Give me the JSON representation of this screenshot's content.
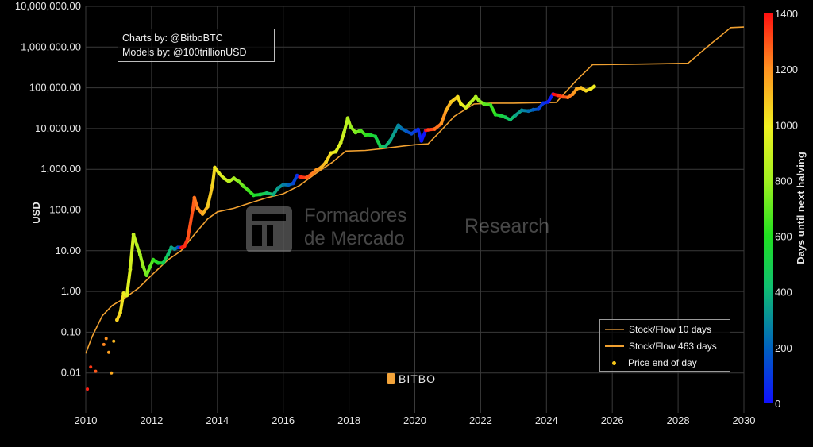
{
  "credits": {
    "line1": "Charts by: @BitboBTC",
    "line2": "Models by: @100trillionUSD"
  },
  "watermark": {
    "line1": "Formadores",
    "line2": "de Mercado",
    "right": "Research"
  },
  "brand": "BITBO",
  "legend": {
    "items": [
      {
        "label": "Stock/Flow 10 days",
        "color": "#9b6a2a",
        "kind": "line"
      },
      {
        "label": "Stock/Flow 463 days",
        "color": "#f0a030",
        "kind": "line"
      },
      {
        "label": "Price end of day",
        "color": "#f5c518",
        "kind": "dot"
      }
    ]
  },
  "chart_data": {
    "type": "scatter",
    "title": "",
    "xlabel": "",
    "ylabel": "USD",
    "y_scale": "log",
    "x_ticks": [
      "2010",
      "2012",
      "2014",
      "2016",
      "2018",
      "2020",
      "2022",
      "2024",
      "2026",
      "2028",
      "2030"
    ],
    "xlim": [
      2010,
      2030
    ],
    "y_ticks": [
      "0.01",
      "0.10",
      "1.00",
      "10.00",
      "100.00",
      "1,000.00",
      "10,000.00",
      "100,000.00",
      "1,000,000.00",
      "10,000,000.00"
    ],
    "ylim": [
      0.001,
      10000000
    ],
    "grid": true,
    "legend_position": "bottom-right",
    "colorbar": {
      "label": "Days until next halving",
      "ticks": [
        "0",
        "200",
        "400",
        "600",
        "800",
        "1000",
        "1200",
        "1400"
      ],
      "range": [
        0,
        1400
      ]
    },
    "series": [
      {
        "name": "Stock/Flow 463 days",
        "color": "#f0a030",
        "points": [
          [
            2010.0,
            0.03
          ],
          [
            2010.2,
            0.08
          ],
          [
            2010.5,
            0.25
          ],
          [
            2010.8,
            0.45
          ],
          [
            2011.2,
            0.7
          ],
          [
            2011.6,
            1.2
          ],
          [
            2012.0,
            2.5
          ],
          [
            2012.5,
            6
          ],
          [
            2012.9,
            10
          ],
          [
            2013.3,
            25
          ],
          [
            2013.7,
            60
          ],
          [
            2014.0,
            90
          ],
          [
            2014.5,
            110
          ],
          [
            2015.0,
            150
          ],
          [
            2015.5,
            200
          ],
          [
            2016.0,
            250
          ],
          [
            2016.5,
            400
          ],
          [
            2017.0,
            800
          ],
          [
            2017.5,
            1500
          ],
          [
            2017.9,
            2800
          ],
          [
            2018.5,
            2900
          ],
          [
            2019.0,
            3200
          ],
          [
            2019.5,
            3600
          ],
          [
            2020.0,
            4000
          ],
          [
            2020.4,
            4200
          ],
          [
            2020.8,
            9000
          ],
          [
            2021.2,
            20000
          ],
          [
            2021.8,
            40000
          ],
          [
            2022.3,
            42000
          ],
          [
            2023.0,
            42000
          ],
          [
            2023.6,
            43000
          ],
          [
            2024.3,
            44000
          ],
          [
            2024.9,
            150000
          ],
          [
            2025.4,
            370000
          ],
          [
            2026.5,
            380000
          ],
          [
            2027.5,
            390000
          ],
          [
            2028.3,
            400000
          ],
          [
            2029.0,
            1200000
          ],
          [
            2029.6,
            3000000
          ],
          [
            2030.0,
            3100000
          ]
        ]
      },
      {
        "name": "Price end of day",
        "color_by": "days_until_next_halving",
        "points": [
          [
            2010.05,
            0.004,
            1380
          ],
          [
            2010.15,
            0.014,
            1340
          ],
          [
            2010.3,
            0.011,
            1290
          ],
          [
            2010.55,
            0.05,
            1220
          ],
          [
            2010.62,
            0.07,
            1200
          ],
          [
            2010.7,
            0.032,
            1170
          ],
          [
            2010.78,
            0.01,
            1150
          ],
          [
            2010.85,
            0.06,
            1120
          ],
          [
            2010.95,
            0.2,
            1090
          ],
          [
            2011.05,
            0.3,
            1060
          ],
          [
            2011.15,
            0.9,
            1020
          ],
          [
            2011.25,
            0.8,
            990
          ],
          [
            2011.35,
            3.5,
            950
          ],
          [
            2011.45,
            25,
            920
          ],
          [
            2011.55,
            14,
            880
          ],
          [
            2011.65,
            8,
            840
          ],
          [
            2011.75,
            4,
            800
          ],
          [
            2011.85,
            2.5,
            760
          ],
          [
            2011.95,
            4,
            720
          ],
          [
            2012.05,
            6,
            690
          ],
          [
            2012.2,
            5,
            620
          ],
          [
            2012.35,
            5,
            560
          ],
          [
            2012.5,
            8,
            480
          ],
          [
            2012.6,
            12,
            420
          ],
          [
            2012.7,
            11,
            350
          ],
          [
            2012.8,
            12,
            280
          ],
          [
            2012.85,
            12,
            160
          ],
          [
            2012.9,
            12,
            40
          ],
          [
            2013.0,
            13,
            1390
          ],
          [
            2013.1,
            20,
            1350
          ],
          [
            2013.25,
            100,
            1300
          ],
          [
            2013.3,
            200,
            1280
          ],
          [
            2013.4,
            110,
            1240
          ],
          [
            2013.55,
            80,
            1190
          ],
          [
            2013.7,
            120,
            1130
          ],
          [
            2013.85,
            400,
            1080
          ],
          [
            2013.92,
            1100,
            1050
          ],
          [
            2014.05,
            800,
            1010
          ],
          [
            2014.2,
            600,
            960
          ],
          [
            2014.35,
            500,
            900
          ],
          [
            2014.5,
            600,
            850
          ],
          [
            2014.65,
            500,
            800
          ],
          [
            2014.8,
            380,
            740
          ],
          [
            2014.95,
            300,
            690
          ],
          [
            2015.1,
            230,
            640
          ],
          [
            2015.3,
            240,
            570
          ],
          [
            2015.5,
            260,
            500
          ],
          [
            2015.7,
            240,
            430
          ],
          [
            2015.85,
            350,
            370
          ],
          [
            2016.0,
            420,
            320
          ],
          [
            2016.15,
            410,
            260
          ],
          [
            2016.3,
            450,
            200
          ],
          [
            2016.42,
            700,
            130
          ],
          [
            2016.5,
            650,
            60
          ],
          [
            2016.55,
            640,
            1400
          ],
          [
            2016.7,
            620,
            1340
          ],
          [
            2016.85,
            750,
            1290
          ],
          [
            2017.0,
            950,
            1230
          ],
          [
            2017.15,
            1100,
            1180
          ],
          [
            2017.3,
            1500,
            1120
          ],
          [
            2017.45,
            2500,
            1060
          ],
          [
            2017.6,
            2700,
            1010
          ],
          [
            2017.75,
            4500,
            950
          ],
          [
            2017.85,
            8000,
            910
          ],
          [
            2017.96,
            18000,
            870
          ],
          [
            2018.05,
            11000,
            840
          ],
          [
            2018.2,
            8000,
            780
          ],
          [
            2018.35,
            9000,
            730
          ],
          [
            2018.5,
            7000,
            670
          ],
          [
            2018.65,
            7000,
            620
          ],
          [
            2018.8,
            6400,
            560
          ],
          [
            2018.95,
            3700,
            510
          ],
          [
            2019.1,
            3600,
            460
          ],
          [
            2019.25,
            5000,
            400
          ],
          [
            2019.4,
            8500,
            350
          ],
          [
            2019.5,
            12000,
            310
          ],
          [
            2019.6,
            10000,
            270
          ],
          [
            2019.75,
            8500,
            220
          ],
          [
            2019.9,
            7500,
            160
          ],
          [
            2020.0,
            8500,
            130
          ],
          [
            2020.1,
            9500,
            90
          ],
          [
            2020.2,
            5000,
            60
          ],
          [
            2020.33,
            9000,
            10
          ],
          [
            2020.4,
            9300,
            1400
          ],
          [
            2020.6,
            9700,
            1320
          ],
          [
            2020.8,
            13000,
            1250
          ],
          [
            2020.95,
            28000,
            1190
          ],
          [
            2021.1,
            45000,
            1130
          ],
          [
            2021.3,
            60000,
            1070
          ],
          [
            2021.4,
            40000,
            1030
          ],
          [
            2021.55,
            33000,
            980
          ],
          [
            2021.7,
            44000,
            920
          ],
          [
            2021.85,
            60000,
            860
          ],
          [
            2021.95,
            48000,
            820
          ],
          [
            2022.1,
            40000,
            770
          ],
          [
            2022.3,
            38000,
            690
          ],
          [
            2022.45,
            22000,
            640
          ],
          [
            2022.6,
            21000,
            580
          ],
          [
            2022.75,
            19000,
            520
          ],
          [
            2022.9,
            16500,
            470
          ],
          [
            2023.05,
            21000,
            420
          ],
          [
            2023.25,
            28000,
            350
          ],
          [
            2023.45,
            27000,
            280
          ],
          [
            2023.6,
            29000,
            230
          ],
          [
            2023.75,
            30000,
            180
          ],
          [
            2023.9,
            42000,
            120
          ],
          [
            2024.05,
            45000,
            70
          ],
          [
            2024.2,
            70000,
            20
          ],
          [
            2024.35,
            65000,
            1400
          ],
          [
            2024.5,
            60000,
            1340
          ],
          [
            2024.65,
            58000,
            1290
          ],
          [
            2024.8,
            70000,
            1230
          ],
          [
            2024.92,
            95000,
            1180
          ],
          [
            2025.05,
            100000,
            1140
          ],
          [
            2025.2,
            85000,
            1090
          ],
          [
            2025.35,
            95000,
            1040
          ],
          [
            2025.45,
            108000,
            1000
          ]
        ]
      }
    ]
  }
}
